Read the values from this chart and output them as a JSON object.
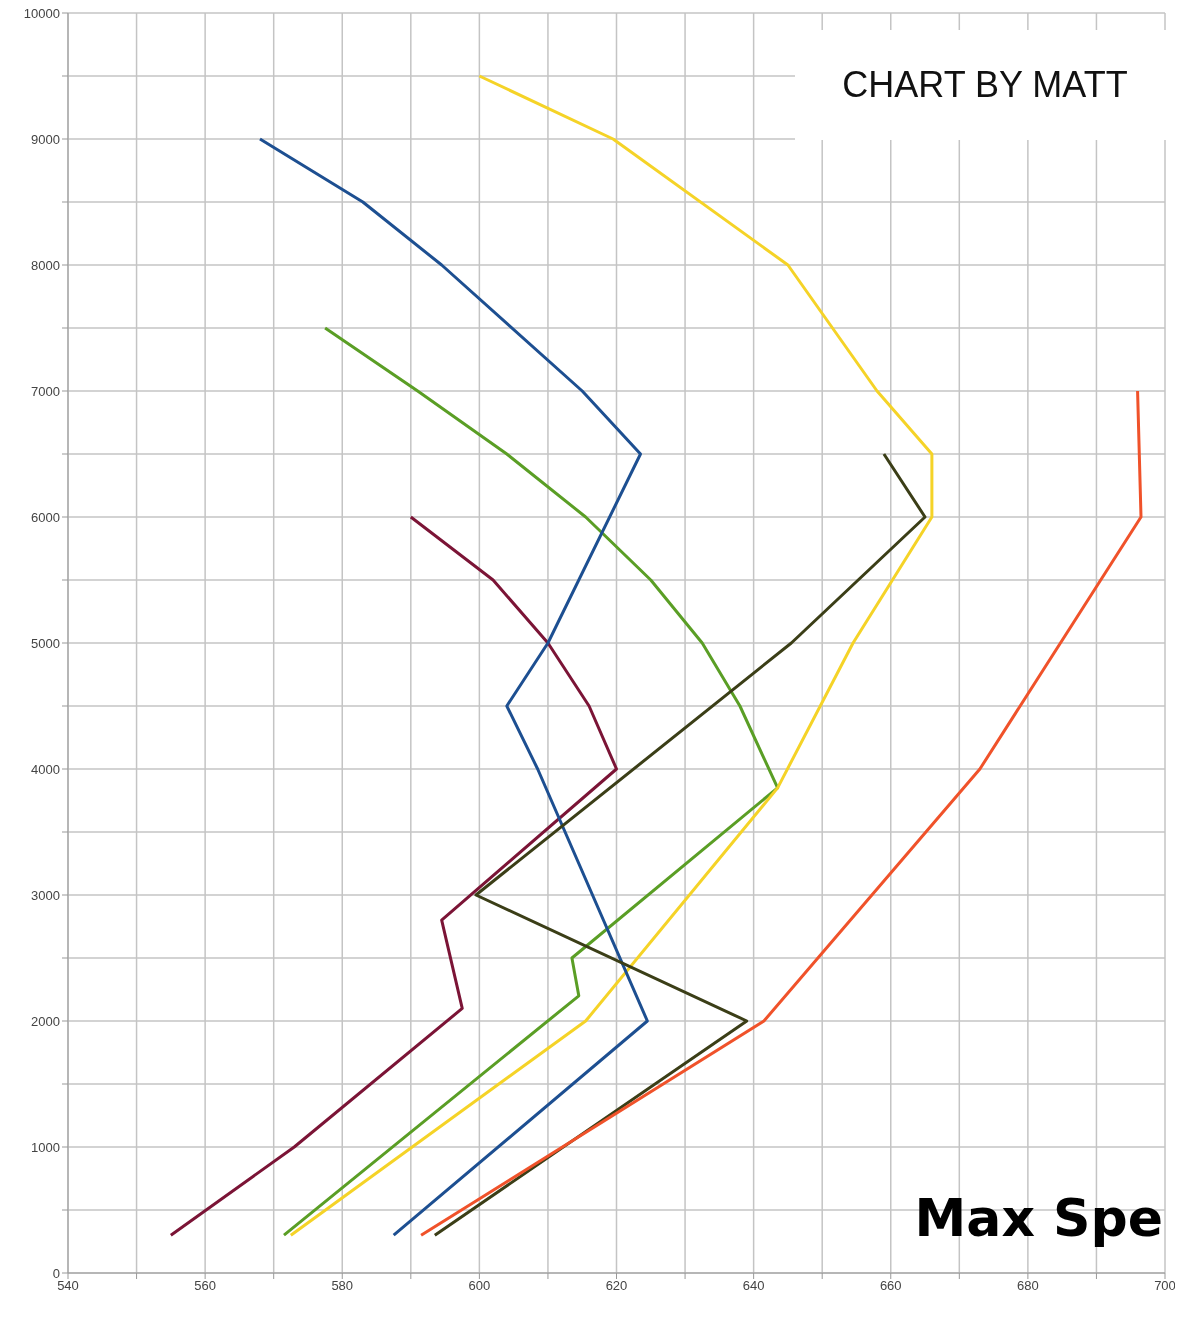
{
  "chart_data": {
    "type": "line",
    "xlim": [
      540,
      700
    ],
    "ylim": [
      0,
      10000
    ],
    "xticks": [
      540,
      {
        "value": 550,
        "label": null
      },
      560,
      {
        "value": 570,
        "label": null
      },
      580,
      {
        "value": 590,
        "label": null
      },
      600,
      {
        "value": 610,
        "label": null
      },
      620,
      {
        "value": 630,
        "label": null
      },
      640,
      {
        "value": 650,
        "label": null
      },
      660,
      {
        "value": 670,
        "label": null
      },
      680,
      {
        "value": 690,
        "label": null
      },
      700
    ],
    "yticks": [
      0,
      {
        "value": 500,
        "label": null
      },
      1000,
      {
        "value": 1500,
        "label": null
      },
      2000,
      {
        "value": 2500,
        "label": null
      },
      3000,
      {
        "value": 3500,
        "label": null
      },
      4000,
      {
        "value": 4500,
        "label": null
      },
      5000,
      {
        "value": 5500,
        "label": null
      },
      6000,
      {
        "value": 6500,
        "label": null
      },
      7000,
      {
        "value": 7500,
        "label": null
      },
      8000,
      {
        "value": 8500,
        "label": null
      },
      9000,
      {
        "value": 9500,
        "label": null
      },
      10000
    ],
    "grid": true,
    "marker": "none",
    "line_style": "solid",
    "series": [
      {
        "color": "#7b1436",
        "x": [
          555,
          573,
          597.5,
          594.5,
          620,
          616,
          610,
          602,
          590
        ],
        "values": [
          300,
          1000,
          2100,
          2800,
          4000,
          4500,
          5000,
          5500,
          6000
        ]
      },
      {
        "color": "#5a9e25",
        "x": [
          571.5,
          614.5,
          613.5,
          643.5,
          638,
          632.5,
          625,
          615.5,
          604,
          591,
          577.5
        ],
        "values": [
          300,
          2200,
          2500,
          3850,
          4500,
          5000,
          5500,
          6000,
          6500,
          7000,
          7500
        ]
      },
      {
        "color": "#f5d327",
        "x": [
          572.5,
          615.5,
          643.5,
          654.5,
          666,
          666,
          658,
          645,
          619.5,
          600
        ],
        "values": [
          300,
          2000,
          3850,
          5000,
          6000,
          6500,
          7000,
          8000,
          9000,
          9500
        ]
      },
      {
        "color": "#1d4f91",
        "x": [
          587.5,
          624.5,
          608.5,
          604,
          610,
          623.5,
          615,
          594.5,
          583,
          568
        ],
        "values": [
          300,
          2000,
          4000,
          4500,
          5000,
          6500,
          7000,
          8000,
          8500,
          9000
        ]
      },
      {
        "color": "#3b3e17",
        "x": [
          593.5,
          639,
          599.5,
          645.5,
          665,
          659
        ],
        "values": [
          300,
          2000,
          3000,
          5000,
          6000,
          6500
        ]
      },
      {
        "color": "#f0522a",
        "x": [
          591.5,
          641.5,
          673,
          696.5,
          696
        ],
        "values": [
          300,
          2000,
          4000,
          6000,
          7000
        ]
      }
    ],
    "annotations": [
      "CHART BY MATT",
      "Max Spe"
    ]
  }
}
